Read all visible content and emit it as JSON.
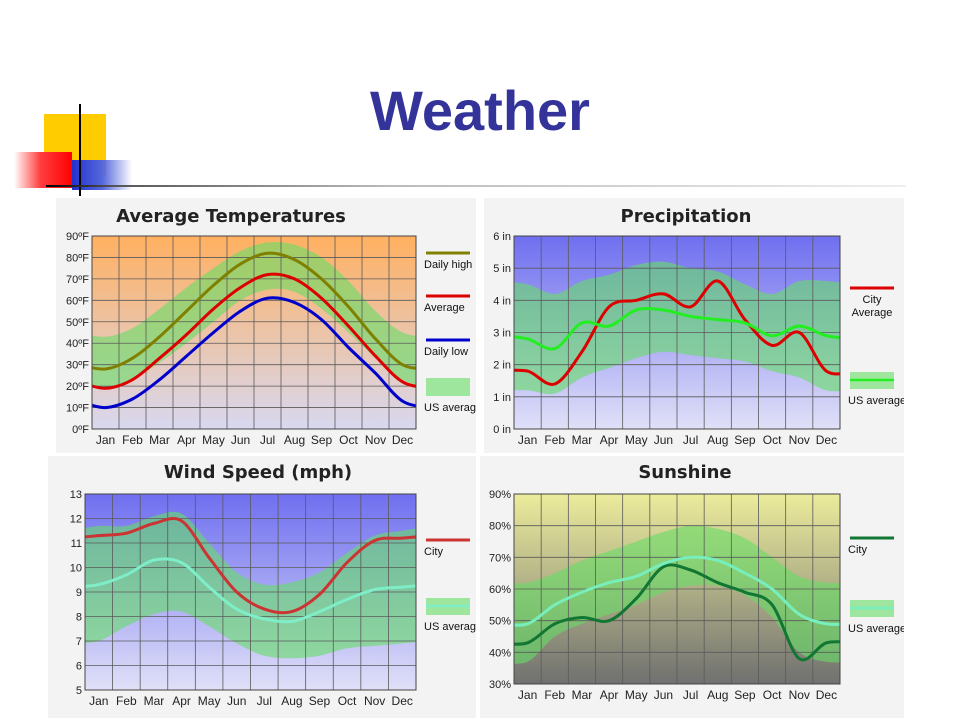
{
  "slide": {
    "title": "Weather"
  },
  "colors": {
    "title": "#333399"
  },
  "chart_data": [
    {
      "type": "line",
      "title": "Average Temperatures",
      "categories": [
        "Jan",
        "Feb",
        "Mar",
        "Apr",
        "May",
        "Jun",
        "Jul",
        "Aug",
        "Sep",
        "Oct",
        "Nov",
        "Dec"
      ],
      "ylim": [
        0,
        90
      ],
      "yticks": [
        0,
        10,
        20,
        30,
        40,
        50,
        60,
        70,
        80,
        90
      ],
      "ytick_labels": [
        "0ºF",
        "10ºF",
        "20ºF",
        "30ºF",
        "40ºF",
        "50ºF",
        "60ºF",
        "70ºF",
        "80ºF",
        "90ºF"
      ],
      "background": {
        "top": "#ffb060",
        "bottom": "#d8d8f0"
      },
      "series": [
        {
          "name": "Daily high",
          "color": "#808000",
          "values": [
            28,
            33,
            43,
            55,
            67,
            77,
            82,
            79,
            70,
            57,
            42,
            30
          ]
        },
        {
          "name": "Average",
          "color": "#dd0000",
          "values": [
            19,
            23,
            33,
            44,
            56,
            66,
            72,
            70,
            61,
            48,
            34,
            22
          ]
        },
        {
          "name": "Daily low",
          "color": "#0000cc",
          "values": [
            10,
            14,
            23,
            34,
            45,
            55,
            61,
            59,
            51,
            38,
            26,
            13
          ]
        }
      ],
      "band": {
        "name": "US average",
        "color": "#66dd66",
        "low": [
          19,
          23,
          31,
          40,
          50,
          60,
          65,
          64,
          56,
          45,
          33,
          23
        ],
        "high": [
          43,
          47,
          56,
          66,
          75,
          83,
          87,
          86,
          80,
          69,
          55,
          45
        ]
      }
    },
    {
      "type": "line",
      "title": "Precipitation",
      "categories": [
        "Jan",
        "Feb",
        "Mar",
        "Apr",
        "May",
        "Jun",
        "Jul",
        "Aug",
        "Sep",
        "Oct",
        "Nov",
        "Dec"
      ],
      "ylim": [
        0,
        6
      ],
      "yticks": [
        0,
        1,
        2,
        3,
        4,
        5,
        6
      ],
      "ytick_labels": [
        "0 in",
        "1 in",
        "2 in",
        "3 in",
        "4 in",
        "5 in",
        "6 in"
      ],
      "background": {
        "top": "#6f6ff0",
        "bottom": "#e0e0f8"
      },
      "series": [
        {
          "name": "City Average",
          "color": "#dd0000",
          "values": [
            1.8,
            1.4,
            2.4,
            3.8,
            4.0,
            4.2,
            3.8,
            4.6,
            3.4,
            2.6,
            3.0,
            1.8
          ]
        },
        {
          "name": "US average",
          "color": "#22ee22",
          "values": [
            2.8,
            2.5,
            3.3,
            3.2,
            3.7,
            3.7,
            3.5,
            3.4,
            3.3,
            2.9,
            3.2,
            2.9
          ]
        }
      ],
      "band": {
        "name": "US average",
        "color": "#66dd66",
        "low": [
          1.2,
          1.1,
          1.6,
          1.9,
          2.2,
          2.4,
          2.3,
          2.2,
          2.1,
          1.8,
          1.6,
          1.2
        ],
        "high": [
          4.5,
          4.2,
          4.6,
          4.8,
          5.1,
          5.2,
          5.0,
          4.9,
          4.5,
          4.2,
          4.6,
          4.6
        ]
      }
    },
    {
      "type": "line",
      "title": "Wind Speed (mph)",
      "categories": [
        "Jan",
        "Feb",
        "Mar",
        "Apr",
        "May",
        "Jun",
        "Jul",
        "Aug",
        "Sep",
        "Oct",
        "Nov",
        "Dec"
      ],
      "ylim": [
        5,
        13
      ],
      "yticks": [
        5,
        6,
        7,
        8,
        9,
        10,
        11,
        12,
        13
      ],
      "ytick_labels": [
        "5",
        "6",
        "7",
        "8",
        "9",
        "10",
        "11",
        "12",
        "13"
      ],
      "background": {
        "top": "#6f6ff0",
        "bottom": "#e0e0f8"
      },
      "series": [
        {
          "name": "City",
          "color": "#cc3333",
          "values": [
            11.3,
            11.4,
            11.8,
            11.9,
            10.4,
            9.0,
            8.3,
            8.2,
            8.9,
            10.2,
            11.1,
            11.2
          ]
        },
        {
          "name": "US average",
          "color": "#7eeec8",
          "values": [
            9.3,
            9.7,
            10.3,
            10.2,
            9.2,
            8.3,
            7.9,
            7.8,
            8.2,
            8.7,
            9.1,
            9.2
          ]
        }
      ],
      "band": {
        "name": "US average",
        "color": "#66dd66",
        "low": [
          7.0,
          7.6,
          8.1,
          8.2,
          7.6,
          6.9,
          6.4,
          6.3,
          6.4,
          6.7,
          6.8,
          6.9
        ],
        "high": [
          11.7,
          11.7,
          12.1,
          12.2,
          11.0,
          9.8,
          9.3,
          9.4,
          9.8,
          10.6,
          11.3,
          11.5
        ]
      }
    },
    {
      "type": "line",
      "title": "Sunshine",
      "categories": [
        "Jan",
        "Feb",
        "Mar",
        "Apr",
        "May",
        "Jun",
        "Jul",
        "Aug",
        "Sep",
        "Oct",
        "Nov",
        "Dec"
      ],
      "ylim": [
        30,
        90
      ],
      "yticks": [
        30,
        40,
        50,
        60,
        70,
        80,
        90
      ],
      "ytick_labels": [
        "30%",
        "40%",
        "50%",
        "60%",
        "70%",
        "80%",
        "90%"
      ],
      "background": {
        "top": "#ecec9c",
        "bottom": "#707070"
      },
      "series": [
        {
          "name": "City",
          "color": "#117733",
          "values": [
            43,
            49,
            51,
            50,
            57,
            67,
            66,
            62,
            59,
            55,
            38,
            43
          ]
        },
        {
          "name": "US average",
          "color": "#77eebb",
          "values": [
            49,
            55,
            59,
            62,
            64,
            68,
            70,
            69,
            65,
            60,
            52,
            49
          ]
        }
      ],
      "band": {
        "name": "US average",
        "color": "#66dd66",
        "low": [
          37,
          45,
          49,
          52,
          55,
          59,
          61,
          61,
          58,
          51,
          40,
          37
        ],
        "high": [
          62,
          65,
          69,
          72,
          75,
          78,
          80,
          79,
          76,
          70,
          64,
          62
        ]
      }
    }
  ]
}
